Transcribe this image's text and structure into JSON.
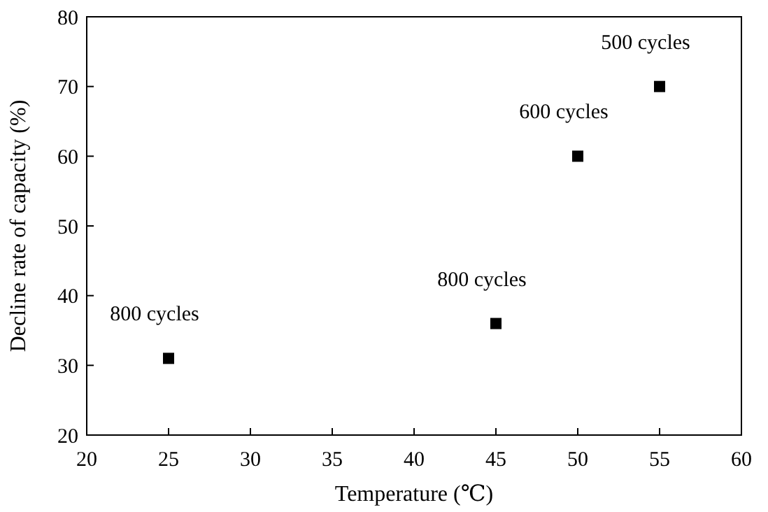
{
  "chart_data": {
    "type": "scatter",
    "xlabel": "Temperature (℃)",
    "ylabel": "Decline rate of capacity (%)",
    "x": [
      25,
      45,
      50,
      55
    ],
    "series": [
      {
        "color": "#000000",
        "values": [
          31,
          36,
          60,
          70
        ]
      }
    ],
    "marker": "square",
    "xlim": [
      20,
      60
    ],
    "xticks": [
      20,
      25,
      30,
      35,
      40,
      45,
      50,
      55,
      60
    ],
    "ylim": [
      20,
      80
    ],
    "yticks": [
      20,
      30,
      40,
      50,
      60,
      70,
      80
    ],
    "grid": false,
    "annotations": [
      {
        "text": "800 cycles",
        "x": 25,
        "y": 31
      },
      {
        "text": "800 cycles",
        "x": 45,
        "y": 36
      },
      {
        "text": "600 cycles",
        "x": 50,
        "y": 60
      },
      {
        "text": "500 cycles",
        "x": 55,
        "y": 70
      }
    ]
  }
}
